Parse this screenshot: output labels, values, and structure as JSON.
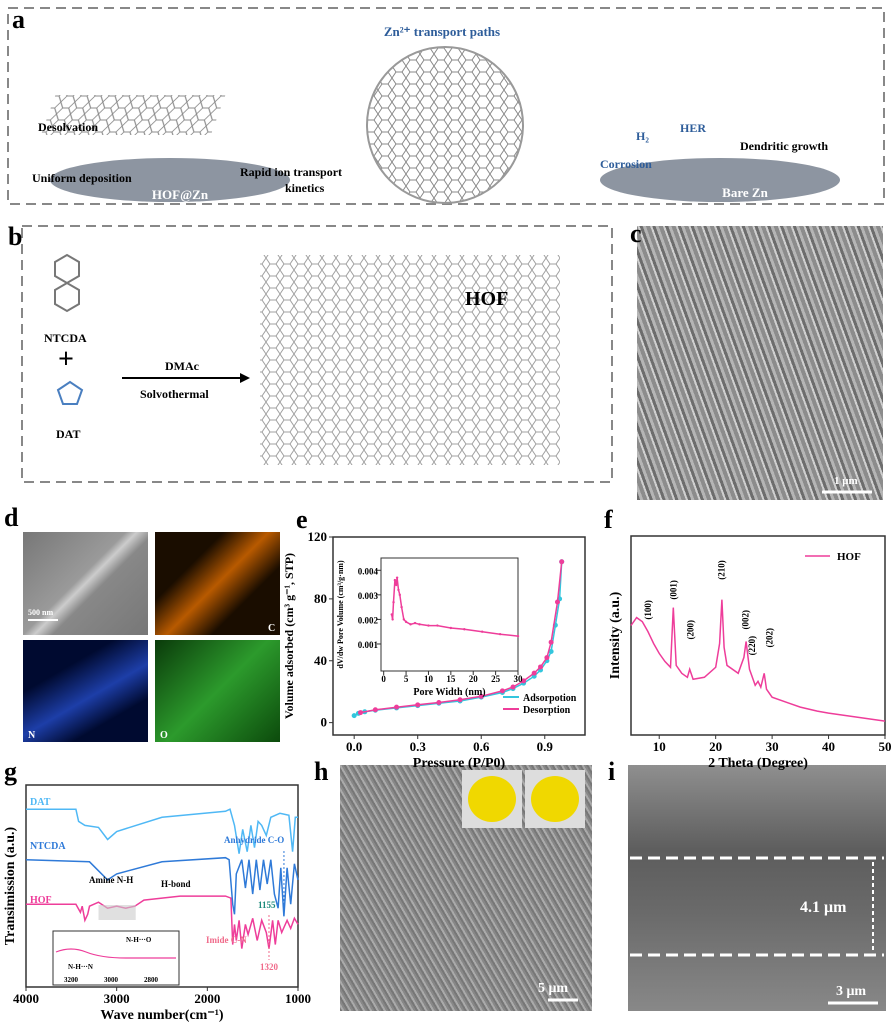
{
  "panels": {
    "a": "a",
    "b": "b",
    "c": "c",
    "d": "d",
    "e": "e",
    "f": "f",
    "g": "g",
    "h": "h",
    "i": "i"
  },
  "panel_a": {
    "title": "Zn²⁺ transport paths",
    "desolvation": "Desolvation",
    "uniform": "Uniform deposition",
    "rapid1": "Rapid ion transport",
    "rapid2": "kinetics",
    "hofzn": "HOF@Zn",
    "h2": "H₂",
    "her": "HER",
    "corrosion": "Corrosion",
    "dendritic": "Dendritic growth",
    "barezn": "Bare Zn"
  },
  "panel_b": {
    "ntcda": "NTCDA",
    "plus": "+",
    "dat": "DAT",
    "dmac": "DMAc",
    "solvo": "Solvothermal",
    "hof": "HOF"
  },
  "panel_c": {
    "scale": "1 μm"
  },
  "panel_d": {
    "scale": "500 nm",
    "c": "C",
    "n": "N",
    "o": "O"
  },
  "panel_h": {
    "scale": "5 μm"
  },
  "panel_i": {
    "thickness": "4.1 μm",
    "scale": "3 μm"
  },
  "chart_data": [
    {
      "id": "e",
      "type": "line",
      "xlabel": "Pressure (P/P0)",
      "ylabel": "Volume adsorbed (cm³ g⁻¹, STP)",
      "xlim": [
        -0.1,
        1.09
      ],
      "ylim": [
        -8,
        120
      ],
      "xticks": [
        "0.0",
        "0.3",
        "0.6",
        "0.9"
      ],
      "xtick_values": [
        0,
        0.3,
        0.6,
        0.9
      ],
      "yticks": [
        "0",
        "40",
        "80",
        "120"
      ],
      "ytick_values": [
        0,
        40,
        80,
        120
      ],
      "legend": "bottom-right",
      "series": [
        {
          "name": "Adsorpotion",
          "color": "#33c6dd",
          "points": [
            [
              0,
              4.5
            ],
            [
              0.02,
              6
            ],
            [
              0.05,
              7
            ],
            [
              0.1,
              8
            ],
            [
              0.2,
              9.5
            ],
            [
              0.3,
              11
            ],
            [
              0.4,
              12.5
            ],
            [
              0.5,
              14
            ],
            [
              0.6,
              16.5
            ],
            [
              0.7,
              19.5
            ],
            [
              0.75,
              22
            ],
            [
              0.8,
              25.5
            ],
            [
              0.85,
              30
            ],
            [
              0.88,
              34
            ],
            [
              0.91,
              40
            ],
            [
              0.93,
              46
            ],
            [
              0.95,
              63
            ],
            [
              0.97,
              80
            ],
            [
              0.98,
              104
            ]
          ]
        },
        {
          "name": "Desorption",
          "color": "#ee3d9a",
          "points": [
            [
              0.03,
              6.5
            ],
            [
              0.1,
              8.3
            ],
            [
              0.2,
              10
            ],
            [
              0.3,
              11.5
            ],
            [
              0.4,
              13
            ],
            [
              0.5,
              14.8
            ],
            [
              0.6,
              17
            ],
            [
              0.7,
              20.5
            ],
            [
              0.75,
              23
            ],
            [
              0.8,
              27
            ],
            [
              0.85,
              32
            ],
            [
              0.88,
              36
            ],
            [
              0.91,
              42
            ],
            [
              0.93,
              52
            ],
            [
              0.96,
              78
            ],
            [
              0.98,
              104
            ]
          ]
        }
      ]
    },
    {
      "id": "e-inset",
      "type": "line",
      "xlabel": "Pore Width (nm)",
      "ylabel": "dV/dw Pore Volume (cm³/g·nm)",
      "xlim": [
        -0.6,
        30
      ],
      "ylim": [
        -0.0001,
        0.0045
      ],
      "xticks": [
        "0",
        "5",
        "10",
        "15",
        "20",
        "25",
        "30"
      ],
      "xtick_values": [
        0,
        5,
        10,
        15,
        20,
        25,
        30
      ],
      "yticks": [
        "0.001",
        "0.002",
        "0.003",
        "0.004"
      ],
      "ytick_values": [
        0.001,
        0.002,
        0.003,
        0.004
      ],
      "series": [
        {
          "name": "HOF",
          "color": "#ee3d9a",
          "points": [
            [
              1.8,
              0.0022
            ],
            [
              2,
              0.002
            ],
            [
              2.2,
              0.0027
            ],
            [
              2.5,
              0.0036
            ],
            [
              2.8,
              0.0034
            ],
            [
              3,
              0.0037
            ],
            [
              3.3,
              0.0032
            ],
            [
              3.6,
              0.003
            ],
            [
              4,
              0.0025
            ],
            [
              4.5,
              0.002
            ],
            [
              5,
              0.0019
            ],
            [
              6,
              0.0018
            ],
            [
              7,
              0.00185
            ],
            [
              8,
              0.0018
            ],
            [
              10,
              0.00175
            ],
            [
              12,
              0.00175
            ],
            [
              15,
              0.00165
            ],
            [
              18,
              0.0016
            ],
            [
              22,
              0.0015
            ],
            [
              26,
              0.0014
            ],
            [
              30,
              0.00132
            ]
          ]
        }
      ]
    },
    {
      "id": "f",
      "type": "line",
      "xlabel": "2 Theta (Degree)",
      "ylabel": "Intensity (a.u.)",
      "xlim": [
        5,
        50
      ],
      "ylim": [
        0,
        100
      ],
      "xticks": [
        "10",
        "20",
        "30",
        "40",
        "50"
      ],
      "xtick_values": [
        10,
        20,
        30,
        40,
        50
      ],
      "legend": "top-right",
      "annotations": [
        {
          "label": "(100)",
          "x": 8
        },
        {
          "label": "(001)",
          "x": 12.5
        },
        {
          "label": "(200)",
          "x": 15.5
        },
        {
          "label": "(210)",
          "x": 21
        },
        {
          "label": "(002)",
          "x": 25.3
        },
        {
          "label": "(220)",
          "x": 27.5
        },
        {
          "label": "(202)",
          "x": 29
        }
      ],
      "series": [
        {
          "name": "HOF",
          "color": "#ee3d9a",
          "points": [
            [
              5,
              55
            ],
            [
              6,
              59
            ],
            [
              7,
              57
            ],
            [
              8,
              52
            ],
            [
              9,
              46
            ],
            [
              10,
              41
            ],
            [
              11,
              37
            ],
            [
              12,
              34
            ],
            [
              12.5,
              64
            ],
            [
              13,
              35
            ],
            [
              14,
              31
            ],
            [
              15,
              29
            ],
            [
              15.4,
              33
            ],
            [
              16,
              28
            ],
            [
              18,
              29
            ],
            [
              20,
              34
            ],
            [
              20.7,
              46
            ],
            [
              21.1,
              68
            ],
            [
              21.5,
              44
            ],
            [
              22,
              35
            ],
            [
              24,
              31
            ],
            [
              25,
              39
            ],
            [
              25.4,
              47
            ],
            [
              26,
              33
            ],
            [
              27,
              25
            ],
            [
              27.5,
              27
            ],
            [
              28,
              24
            ],
            [
              28.6,
              31
            ],
            [
              29,
              23
            ],
            [
              30,
              19
            ],
            [
              33,
              16
            ],
            [
              35,
              14
            ],
            [
              38,
              12
            ],
            [
              40,
              11
            ],
            [
              45,
              9
            ],
            [
              50,
              7
            ]
          ]
        }
      ]
    },
    {
      "id": "g",
      "type": "line",
      "xlabel": "Wave number(cm⁻¹)",
      "ylabel": "Transimission (a.u.)",
      "xlim": [
        4000,
        1000
      ],
      "ylim": [
        0,
        100
      ],
      "xticks": [
        "4000",
        "3000",
        "2000",
        "1000"
      ],
      "xtick_values": [
        4000,
        3000,
        2000,
        1000
      ],
      "annotations": [
        {
          "label": "Anhydride C-O"
        },
        {
          "label": "1155",
          "x": 1155
        },
        {
          "label": "Amine N-H"
        },
        {
          "label": "H-bond"
        },
        {
          "label": "Imide C-N"
        },
        {
          "label": "1320",
          "x": 1320
        }
      ],
      "inset": {
        "xticks": [
          "3200",
          "3000",
          "2800"
        ],
        "labels": [
          "N-H···N",
          "N-H···O"
        ]
      },
      "series": [
        {
          "name": "DAT",
          "color": "#4fb8f5",
          "points": [
            [
              4000,
              88
            ],
            [
              3450,
              88
            ],
            [
              3420,
              82
            ],
            [
              3350,
              80
            ],
            [
              3200,
              79
            ],
            [
              3100,
              73
            ],
            [
              3000,
              77
            ],
            [
              2500,
              84
            ],
            [
              1800,
              87
            ],
            [
              1750,
              88
            ],
            [
              1700,
              80
            ],
            [
              1650,
              66
            ],
            [
              1610,
              78
            ],
            [
              1560,
              67
            ],
            [
              1520,
              80
            ],
            [
              1480,
              69
            ],
            [
              1440,
              82
            ],
            [
              1400,
              80
            ],
            [
              1350,
              75
            ],
            [
              1300,
              84
            ],
            [
              1200,
              86
            ],
            [
              1100,
              85
            ],
            [
              1060,
              67
            ],
            [
              1030,
              84
            ],
            [
              1000,
              84
            ]
          ]
        },
        {
          "name": "NTCDA",
          "color": "#2f7ad8",
          "points": [
            [
              4000,
              63
            ],
            [
              3300,
              62
            ],
            [
              3100,
              53
            ],
            [
              3000,
              56
            ],
            [
              2500,
              62
            ],
            [
              1800,
              64
            ],
            [
              1760,
              63
            ],
            [
              1720,
              41
            ],
            [
              1700,
              36
            ],
            [
              1680,
              56
            ],
            [
              1620,
              63
            ],
            [
              1580,
              49
            ],
            [
              1540,
              63
            ],
            [
              1500,
              46
            ],
            [
              1460,
              63
            ],
            [
              1420,
              48
            ],
            [
              1380,
              63
            ],
            [
              1340,
              51
            ],
            [
              1300,
              63
            ],
            [
              1260,
              46
            ],
            [
              1220,
              39
            ],
            [
              1190,
              59
            ],
            [
              1155,
              35
            ],
            [
              1120,
              59
            ],
            [
              1080,
              41
            ],
            [
              1040,
              61
            ],
            [
              1000,
              53
            ]
          ]
        },
        {
          "name": "HOF",
          "color": "#ee3d9a",
          "points": [
            [
              4000,
              41
            ],
            [
              3450,
              41
            ],
            [
              3400,
              37
            ],
            [
              3380,
              40
            ],
            [
              3350,
              33
            ],
            [
              3320,
              36
            ],
            [
              3300,
              40
            ],
            [
              3200,
              42
            ],
            [
              3100,
              39
            ],
            [
              3000,
              40
            ],
            [
              2900,
              39
            ],
            [
              2800,
              40
            ],
            [
              2700,
              43
            ],
            [
              2300,
              45
            ],
            [
              1800,
              45
            ],
            [
              1740,
              44
            ],
            [
              1720,
              21
            ],
            [
              1700,
              31
            ],
            [
              1680,
              23
            ],
            [
              1650,
              33
            ],
            [
              1620,
              19
            ],
            [
              1580,
              31
            ],
            [
              1550,
              26
            ],
            [
              1500,
              34
            ],
            [
              1450,
              23
            ],
            [
              1400,
              33
            ],
            [
              1350,
              27
            ],
            [
              1320,
              19
            ],
            [
              1280,
              33
            ],
            [
              1250,
              21
            ],
            [
              1220,
              33
            ],
            [
              1180,
              27
            ],
            [
              1120,
              33
            ],
            [
              1080,
              29
            ],
            [
              1040,
              34
            ],
            [
              1000,
              31
            ]
          ]
        }
      ]
    }
  ]
}
